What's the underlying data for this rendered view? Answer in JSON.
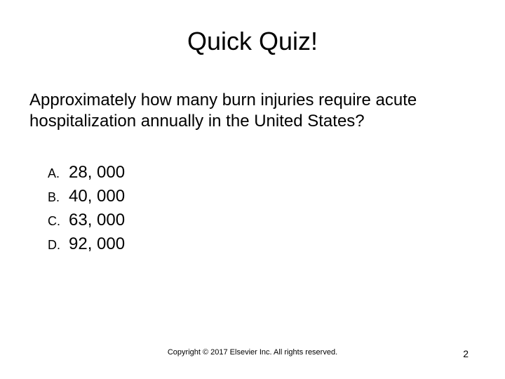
{
  "title": "Quick Quiz!",
  "question": "Approximately how many burn injuries require acute hospitalization annually in the United States?",
  "options": [
    {
      "letter": "A.",
      "text": "28, 000"
    },
    {
      "letter": "B.",
      "text": "40, 000"
    },
    {
      "letter": "C.",
      "text": "63, 000"
    },
    {
      "letter": "D.",
      "text": "92, 000"
    }
  ],
  "copyright": "Copyright © 2017 Elsevier Inc. All rights reserved.",
  "page_number": "2",
  "colors": {
    "background": "#ffffff",
    "text": "#000000"
  },
  "fonts": {
    "title_size": 36,
    "question_size": 24,
    "option_letter_size": 18,
    "option_text_size": 24,
    "footer_size": 11,
    "page_num_size": 14,
    "family": "Arial"
  }
}
